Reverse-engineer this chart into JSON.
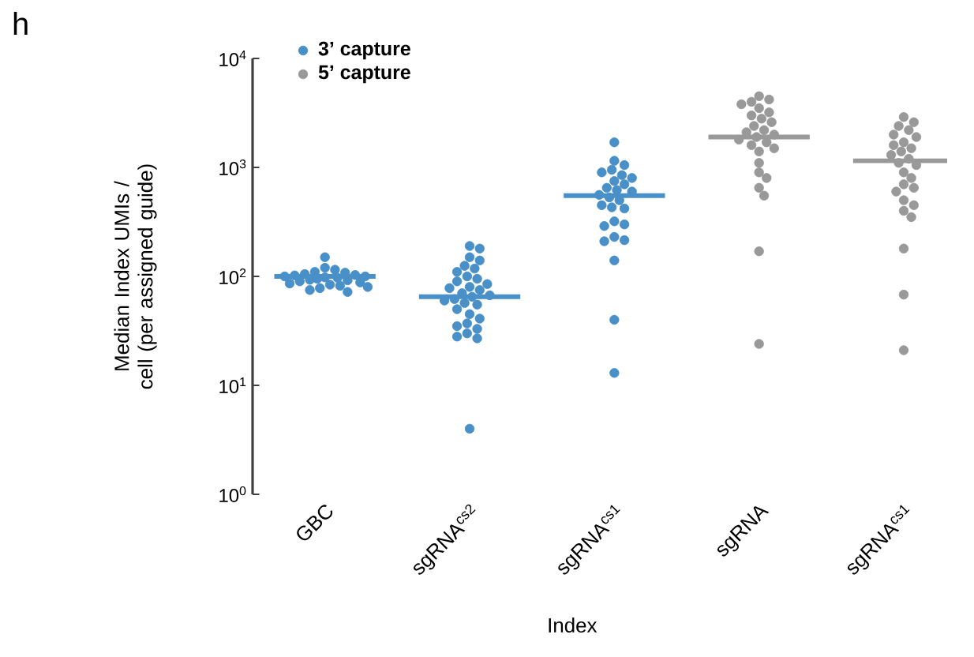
{
  "chart_data": {
    "type": "box",
    "title": "h",
    "xlabel": "Index",
    "ylabel": "Median Index UMIs / cell (per assigned guide)",
    "categories": [
      "GBC",
      "sgRNA$^{cs2}$",
      "sgRNA$^{cs1}$",
      "sgRNA",
      "sgRNA$^{cs1}$"
    ],
    "log": "y",
    "ylim": [
      1,
      10000
    ],
    "yticks": [
      {
        "value": 1,
        "label": "10$^{0}$"
      },
      {
        "value": 10,
        "label": "10$^{1}$"
      },
      {
        "value": 100,
        "label": "10$^{2}$"
      },
      {
        "value": 1000,
        "label": "10$^{3}$"
      },
      {
        "value": 10000,
        "label": "10$^{4}$"
      }
    ],
    "legend": "top left",
    "marker": "circle",
    "grid": false,
    "series": [
      {
        "name": "3’ capture",
        "color": "#4a90c8",
        "boxes": [
          {
            "low": 100,
            "q1": 100,
            "median": 100,
            "q3": 100,
            "high": 100,
            "outliers": [
              150,
              120,
              115,
              110,
              108,
              105,
              103,
              102,
              100,
              100,
              98,
              97,
              95,
              93,
              92,
              90,
              88,
              86,
              84,
              82,
              80,
              78,
              75,
              72
            ]
          },
          {
            "low": 65,
            "q1": 65,
            "median": 65,
            "q3": 65,
            "high": 65,
            "outliers": [
              190,
              180,
              150,
              140,
              125,
              118,
              110,
              100,
              95,
              90,
              85,
              80,
              78,
              75,
              70,
              67,
              65,
              62,
              60,
              57,
              55,
              50,
              45,
              41,
              37,
              35,
              33,
              30,
              28,
              27,
              4
            ]
          },
          {
            "low": 550,
            "q1": 550,
            "median": 550,
            "q3": 550,
            "high": 550,
            "outliers": [
              1700,
              1150,
              1050,
              950,
              900,
              850,
              800,
              750,
              700,
              650,
              620,
              600,
              560,
              530,
              500,
              450,
              430,
              420,
              320,
              300,
              290,
              230,
              215,
              210,
              140,
              40,
              13
            ]
          },
          null,
          null
        ]
      },
      {
        "name": "5’ capture",
        "color": "#999999",
        "boxes": [
          null,
          null,
          null,
          {
            "low": 1900,
            "q1": 1900,
            "median": 1900,
            "q3": 1900,
            "high": 1900,
            "outliers": [
              4500,
              4200,
              4000,
              3800,
              3500,
              3200,
              3000,
              2800,
              2600,
              2400,
              2200,
              2100,
              2000,
              1900,
              1800,
              1700,
              1600,
              1500,
              1400,
              1100,
              900,
              800,
              650,
              550,
              170,
              24
            ]
          },
          {
            "low": 1150,
            "q1": 1150,
            "median": 1150,
            "q3": 1150,
            "high": 1150,
            "outliers": [
              2900,
              2600,
              2400,
              2200,
              2000,
              1900,
              1700,
              1600,
              1500,
              1400,
              1300,
              1200,
              1100,
              1050,
              900,
              800,
              700,
              650,
              600,
              500,
              450,
              400,
              350,
              180,
              68,
              21
            ]
          }
        ]
      }
    ]
  }
}
